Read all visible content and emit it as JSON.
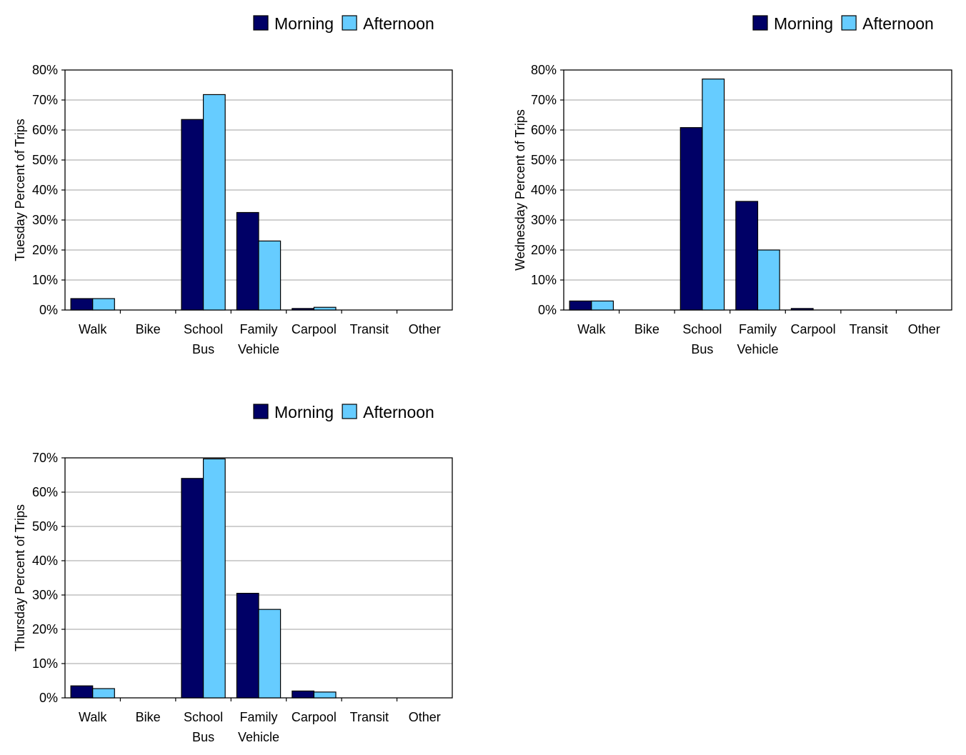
{
  "chart_data": [
    {
      "type": "bar",
      "title": "",
      "xlabel": "",
      "ylabel": "Tuesday Percent of Trips",
      "ylim": [
        0,
        80
      ],
      "yticks": [
        "0%",
        "10%",
        "20%",
        "30%",
        "40%",
        "50%",
        "60%",
        "70%",
        "80%"
      ],
      "tick_step": 10,
      "grid": true,
      "legend_position": "top-right",
      "categories": [
        [
          "Walk"
        ],
        [
          "Bike"
        ],
        [
          "School",
          "Bus"
        ],
        [
          "Family",
          "Vehicle"
        ],
        [
          "Carpool"
        ],
        [
          "Transit"
        ],
        [
          "Other"
        ]
      ],
      "series": [
        {
          "name": "Morning",
          "color": "#000066",
          "values": [
            3.8,
            0,
            63.5,
            32.5,
            0.5,
            0,
            0
          ]
        },
        {
          "name": "Afternoon",
          "color": "#66ccff",
          "values": [
            3.8,
            0,
            71.8,
            23.0,
            0.9,
            0,
            0
          ]
        }
      ]
    },
    {
      "type": "bar",
      "title": "",
      "xlabel": "",
      "ylabel": "Wednesday Percent of Trips",
      "ylim": [
        0,
        80
      ],
      "yticks": [
        "0%",
        "10%",
        "20%",
        "30%",
        "40%",
        "50%",
        "60%",
        "70%",
        "80%"
      ],
      "tick_step": 10,
      "grid": true,
      "legend_position": "top-right",
      "categories": [
        [
          "Walk"
        ],
        [
          "Bike"
        ],
        [
          "School",
          "Bus"
        ],
        [
          "Family",
          "Vehicle"
        ],
        [
          "Carpool"
        ],
        [
          "Transit"
        ],
        [
          "Other"
        ]
      ],
      "series": [
        {
          "name": "Morning",
          "color": "#000066",
          "values": [
            3.0,
            0,
            60.8,
            36.2,
            0.5,
            0,
            0
          ]
        },
        {
          "name": "Afternoon",
          "color": "#66ccff",
          "values": [
            3.0,
            0,
            77.0,
            20.0,
            0,
            0,
            0
          ]
        }
      ]
    },
    {
      "type": "bar",
      "title": "",
      "xlabel": "",
      "ylabel": "Thursday Percent of Trips",
      "ylim": [
        0,
        70
      ],
      "yticks": [
        "0%",
        "10%",
        "20%",
        "30%",
        "40%",
        "50%",
        "60%",
        "70%"
      ],
      "tick_step": 10,
      "grid": true,
      "legend_position": "top-right",
      "categories": [
        [
          "Walk"
        ],
        [
          "Bike"
        ],
        [
          "School",
          "Bus"
        ],
        [
          "Family",
          "Vehicle"
        ],
        [
          "Carpool"
        ],
        [
          "Transit"
        ],
        [
          "Other"
        ]
      ],
      "series": [
        {
          "name": "Morning",
          "color": "#000066",
          "values": [
            3.5,
            0,
            64.0,
            30.5,
            2.0,
            0,
            0
          ]
        },
        {
          "name": "Afternoon",
          "color": "#66ccff",
          "values": [
            2.7,
            0,
            69.7,
            25.8,
            1.7,
            0,
            0
          ]
        }
      ]
    }
  ]
}
